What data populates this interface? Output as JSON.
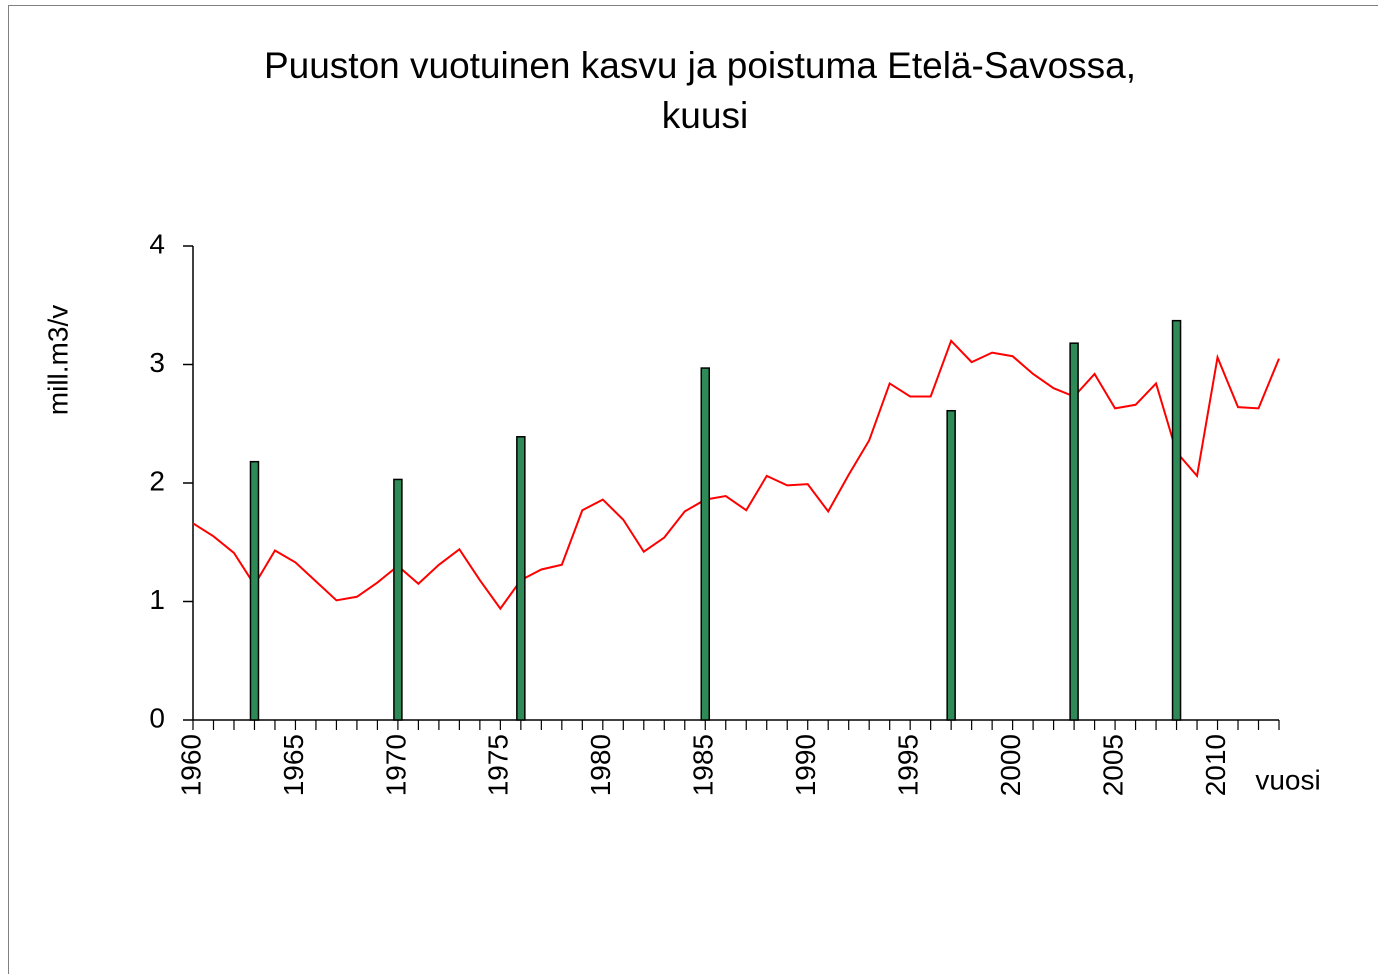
{
  "chart_data": {
    "type": "combo",
    "title": [
      "Puuston vuotuinen kasvu ja poistuma Etelä-Savossa,",
      "kuusi"
    ],
    "ylabel": "mill.m3/v",
    "xlabel": "vuosi",
    "xlim": [
      1960,
      2013
    ],
    "xticks": [
      1960,
      1965,
      1970,
      1975,
      1980,
      1985,
      1990,
      1995,
      2000,
      2005,
      2010
    ],
    "ylim": [
      0,
      4
    ],
    "yticks": [
      0,
      1,
      2,
      3,
      4
    ],
    "series": [
      {
        "type": "line",
        "color": "#ff0000",
        "x": [
          1960,
          1961,
          1962,
          1963,
          1964,
          1965,
          1966,
          1967,
          1968,
          1969,
          1970,
          1971,
          1972,
          1973,
          1974,
          1975,
          1976,
          1977,
          1978,
          1979,
          1980,
          1981,
          1982,
          1983,
          1984,
          1985,
          1986,
          1987,
          1988,
          1989,
          1990,
          1991,
          1992,
          1993,
          1994,
          1995,
          1996,
          1997,
          1998,
          1999,
          2000,
          2001,
          2002,
          2003,
          2004,
          2005,
          2006,
          2007,
          2008,
          2009,
          2010,
          2011,
          2012,
          2013
        ],
        "values": [
          1.66,
          1.55,
          1.41,
          1.14,
          1.43,
          1.33,
          1.17,
          1.01,
          1.04,
          1.16,
          1.3,
          1.15,
          1.31,
          1.44,
          1.18,
          0.94,
          1.18,
          1.27,
          1.31,
          1.77,
          1.86,
          1.69,
          1.42,
          1.54,
          1.76,
          1.86,
          1.89,
          1.77,
          2.06,
          1.98,
          1.99,
          1.76,
          2.07,
          2.36,
          2.84,
          2.73,
          2.73,
          3.2,
          3.02,
          3.1,
          3.07,
          2.92,
          2.8,
          2.73,
          2.92,
          2.63,
          2.66,
          2.84,
          2.26,
          2.06,
          3.06,
          2.64,
          2.63,
          3.05
        ]
      },
      {
        "type": "bar",
        "color": "#2e8b57",
        "x": [
          1963,
          1970,
          1976,
          1985,
          1997,
          2003,
          2008
        ],
        "values": [
          2.18,
          2.03,
          2.39,
          2.97,
          2.61,
          3.18,
          3.37
        ]
      }
    ]
  }
}
